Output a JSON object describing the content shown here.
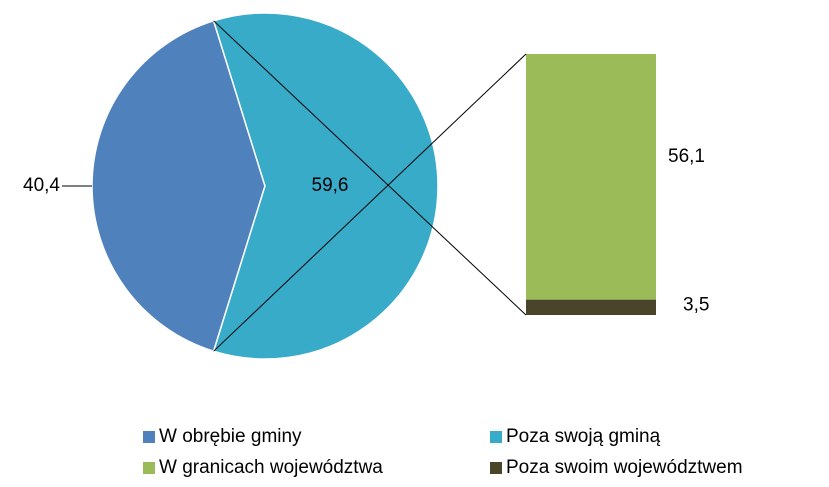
{
  "chart_data": [
    {
      "type": "pie",
      "categories": [
        "W obrębie gminy",
        "Poza swoją gminą"
      ],
      "values": [
        40.4,
        59.6
      ],
      "value_labels": [
        "40,4",
        "59,6"
      ],
      "colors": [
        "#4f81bd",
        "#37abc8"
      ]
    },
    {
      "type": "bar",
      "categories": [
        "W granicach województwa",
        "Poza swoim województwem"
      ],
      "values": [
        56.1,
        3.5
      ],
      "value_labels": [
        "56,1",
        "3,5"
      ],
      "colors": [
        "#9bbb59",
        "#4a452a"
      ]
    }
  ]
}
